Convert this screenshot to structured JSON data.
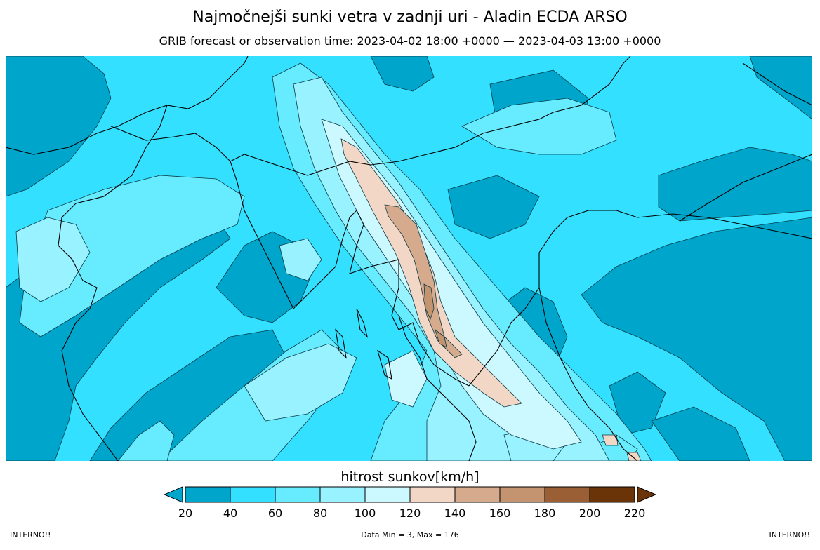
{
  "title": "Najmočnejši sunki vetra v zadnji uri - Aladin ECDA ARSO",
  "subtitle": "GRIB forecast or observation time: 2023-04-02 18:00 +0000 — 2023-04-03 13:00 +0000",
  "colorbar": {
    "title": "hitrost sunkov[km/h]",
    "ticks": [
      "20",
      "40",
      "60",
      "80",
      "100",
      "120",
      "140",
      "160",
      "180",
      "200",
      "220"
    ],
    "colors": [
      "#00a5cc",
      "#33e0ff",
      "#66ebff",
      "#99f2ff",
      "#ccf9ff",
      "#f2d6c6",
      "#d6aa8c",
      "#c49470",
      "#9a5f34",
      "#6b3408"
    ],
    "under_color": "#00a5cc",
    "over_color": "#6b3408"
  },
  "footer": {
    "left": "INTERNO!!",
    "center": "Data Min = 3, Max = 176",
    "right": "INTERNO!!"
  }
}
